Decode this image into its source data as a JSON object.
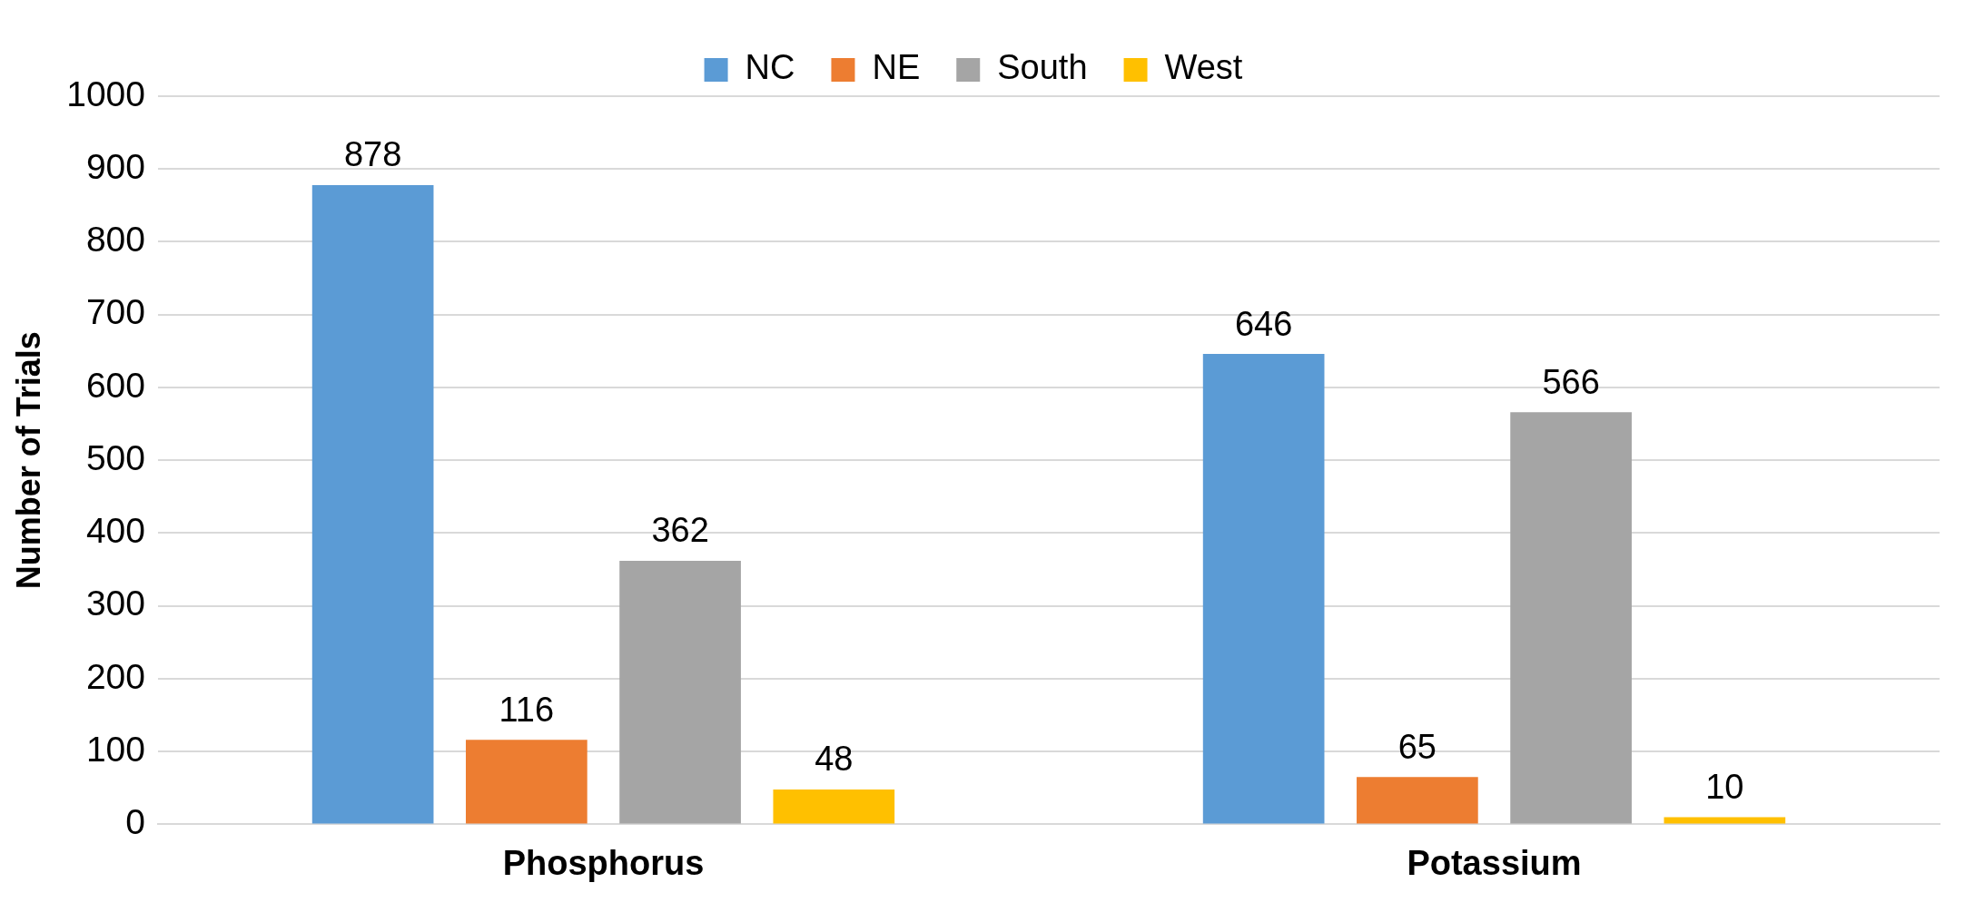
{
  "chart_data": {
    "type": "bar",
    "ylabel": "Number of Trials",
    "categories": [
      "Phosphorus",
      "Potassium"
    ],
    "series": [
      {
        "name": "NC",
        "color": "#5b9bd5",
        "values": [
          878,
          646
        ]
      },
      {
        "name": "NE",
        "color": "#ed7d31",
        "values": [
          116,
          65
        ]
      },
      {
        "name": "South",
        "color": "#a5a5a5",
        "values": [
          362,
          566
        ]
      },
      {
        "name": "West",
        "color": "#ffc000",
        "values": [
          48,
          10
        ]
      }
    ],
    "ylim": [
      0,
      1000
    ],
    "yticks": [
      0,
      100,
      200,
      300,
      400,
      500,
      600,
      700,
      800,
      900,
      1000
    ],
    "grid": "y",
    "legend": "top",
    "data_labels": true
  }
}
